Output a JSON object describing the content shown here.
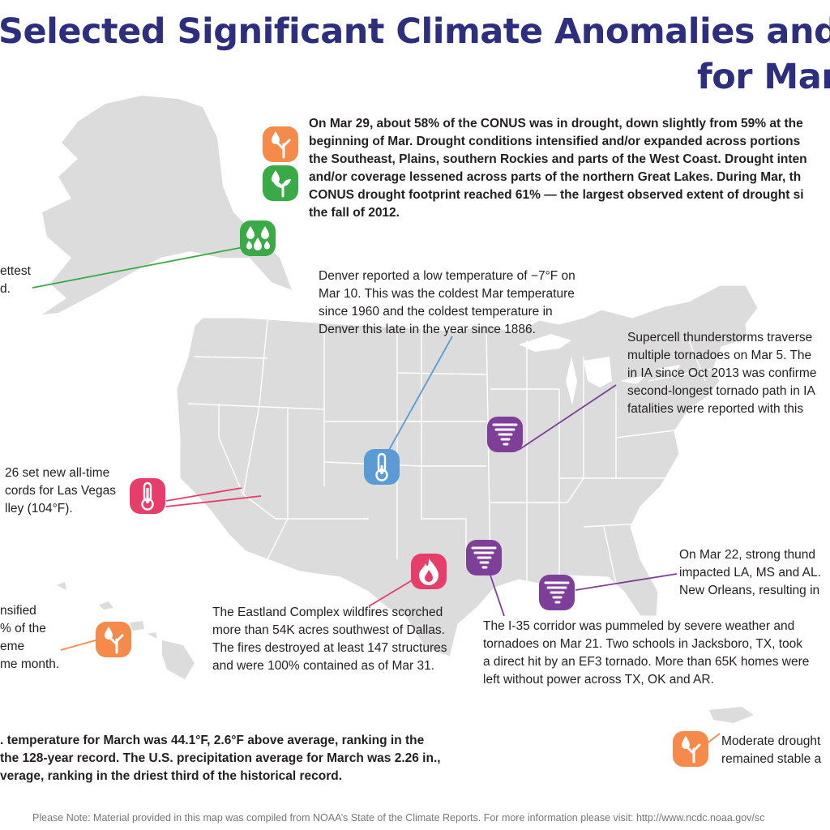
{
  "title": {
    "line1": "Selected Significant Climate Anomalies and",
    "line2": "for Marc"
  },
  "colors": {
    "title": "#2d2e7e",
    "land": "#dcdcdc",
    "borders": "#ffffff",
    "drought_icon": "#f58a4b",
    "wet_icon": "#3aaa47",
    "cold_icon": "#5b9bd5",
    "heat_icon": "#e63d6b",
    "fire_icon": "#e63d6b",
    "tornado_icon": "#7e3f98"
  },
  "annotations": {
    "drought_conus": "On Mar 29, about 58% of the CONUS was in drought, down slightly from 59% at the\nbeginning of Mar. Drought conditions intensified and/or expanded across portions\nthe Southeast, Plains, southern Rockies and parts of the West Coast. Drought inten\nand/or coverage lessened across parts of the northern Great Lakes. During Mar, th\nCONUS drought footprint reached 61% — the largest observed extent of drought si\nthe fall of 2012.",
    "alaska_wet": "ettest\nd.",
    "denver": "Denver reported a low temperature of −7°F on\nMar 10. This was the coldest Mar temperature\nsince 1960 and the coldest temperature in\nDenver this late in the year since 1886.",
    "iowa_tornado": "Supercell thunderstorms traverse\nmultiple tornadoes on Mar 5. The\nin IA since Oct 2013 was confirme\nsecond-longest tornado path in IA\nfatalities were reported with this",
    "las_vegas": "26 set new all-time\ncords for Las Vegas\nlley (104°F).",
    "new_orleans": "On Mar 22, strong thund\nimpacted LA, MS and AL.\nNew Orleans, resulting in",
    "eastland_fire": "The Eastland Complex wildfires scorched\nmore than 54K acres southwest of Dallas.\nThe fires destroyed at least 147 structures\nand were 100% contained as of Mar 31.",
    "hawaii": "nsified\n% of the\neme\nme month.",
    "i35": "The I-35 corridor was pummeled by severe weather and\ntornadoes on Mar 21. Two schools in Jacksboro, TX, took\na direct hit by an EF3 tornado. More than 65K homes were\nleft without power across TX, OK and AR.",
    "conus_summary": ". temperature for March was 44.1°F, 2.6°F above average, ranking in the\nthe 128-year record. The U.S. precipitation average for March was 2.26 in.,\nverage, ranking in the driest third of the historical record.",
    "puerto_rico": "Moderate drought\nremained stable a"
  },
  "footer": "Please Note: Material provided in this map was compiled from NOAA’s State of the Climate Reports. For more information please visit: http://www.ncdc.noaa.gov/sc",
  "icons": [
    {
      "name": "drought-icon",
      "category": "drought"
    },
    {
      "name": "drought-improvement-icon",
      "category": "wet"
    },
    {
      "name": "heavy-rain-icon",
      "category": "wet"
    },
    {
      "name": "thermometer-cold-icon",
      "category": "cold"
    },
    {
      "name": "thermometer-heat-icon",
      "category": "heat"
    },
    {
      "name": "tornado-icon",
      "category": "tornado"
    },
    {
      "name": "wildfire-icon",
      "category": "fire"
    }
  ]
}
